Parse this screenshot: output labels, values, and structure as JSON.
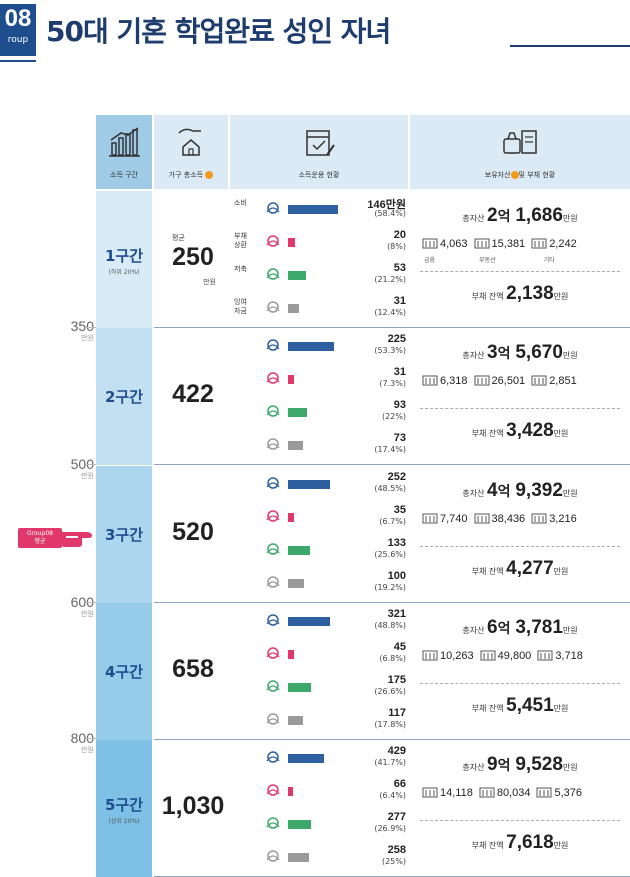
{
  "header": {
    "badge_number": "08",
    "badge_label": "roup",
    "title": "50대 기혼 학업완료 성인 자녀"
  },
  "scale": [
    {
      "value": "350",
      "unit": "만원"
    },
    {
      "value": "500",
      "unit": "만원"
    },
    {
      "value": "600",
      "unit": "만원"
    },
    {
      "value": "800",
      "unit": "만원"
    }
  ],
  "pointer": {
    "tag_line1": "Group08",
    "tag_line2": "평균"
  },
  "columns": {
    "group": "소득 구간",
    "income": "가구 총소득",
    "usage": "소득운용 현황",
    "assets_a": "보유자산",
    "assets_b": "및 부채 현황"
  },
  "colors": {
    "consumption": "#2e5f9e",
    "debt_repay": "#e0386a",
    "savings": "#3da86a",
    "surplus": "#9a9a9a",
    "header_bg": "#dbeaf4",
    "col_dark": "#9fcbe6",
    "col_light": "#d8ebf6"
  },
  "usage_labels": {
    "consumption": "소비",
    "debt": "부채\n상환",
    "savings": "저축",
    "surplus": "잉여\n자금"
  },
  "row1_extra": {
    "avg": "평균",
    "unit": "만원",
    "consumption_unit": "만원",
    "sub": "(하위 20%)"
  },
  "row5_extra": {
    "sub": "(상위 20%)"
  },
  "asset_labels": {
    "total": "총자산",
    "eok": "억",
    "man": "만원",
    "debt": "부채 잔액",
    "fin": "금융",
    "real": "부동산",
    "etc": "기타"
  },
  "rows": [
    {
      "group": "1구간",
      "income": "250",
      "usage": [
        {
          "value": "146",
          "pct": "(58.4%)",
          "ratio": 0.584
        },
        {
          "value": "20",
          "pct": "(8%)",
          "ratio": 0.08
        },
        {
          "value": "53",
          "pct": "(21.2%)",
          "ratio": 0.212
        },
        {
          "value": "31",
          "pct": "(12.4%)",
          "ratio": 0.124
        }
      ],
      "total_eok": "2",
      "total_man": "1,686",
      "financial": "4,063",
      "real_estate": "15,381",
      "other": "2,242",
      "debt": "2,138"
    },
    {
      "group": "2구간",
      "income": "422",
      "usage": [
        {
          "value": "225",
          "pct": "(53.3%)",
          "ratio": 0.533
        },
        {
          "value": "31",
          "pct": "(7.3%)",
          "ratio": 0.073
        },
        {
          "value": "93",
          "pct": "(22%)",
          "ratio": 0.22
        },
        {
          "value": "73",
          "pct": "(17.4%)",
          "ratio": 0.174
        }
      ],
      "total_eok": "3",
      "total_man": "5,670",
      "financial": "6,318",
      "real_estate": "26,501",
      "other": "2,851",
      "debt": "3,428"
    },
    {
      "group": "3구간",
      "income": "520",
      "usage": [
        {
          "value": "252",
          "pct": "(48.5%)",
          "ratio": 0.485
        },
        {
          "value": "35",
          "pct": "(6.7%)",
          "ratio": 0.067
        },
        {
          "value": "133",
          "pct": "(25.6%)",
          "ratio": 0.256
        },
        {
          "value": "100",
          "pct": "(19.2%)",
          "ratio": 0.192
        }
      ],
      "total_eok": "4",
      "total_man": "9,392",
      "financial": "7,740",
      "real_estate": "38,436",
      "other": "3,216",
      "debt": "4,277"
    },
    {
      "group": "4구간",
      "income": "658",
      "usage": [
        {
          "value": "321",
          "pct": "(48.8%)",
          "ratio": 0.488
        },
        {
          "value": "45",
          "pct": "(6.8%)",
          "ratio": 0.068
        },
        {
          "value": "175",
          "pct": "(26.6%)",
          "ratio": 0.266
        },
        {
          "value": "117",
          "pct": "(17.8%)",
          "ratio": 0.178
        }
      ],
      "total_eok": "6",
      "total_man": "3,781",
      "financial": "10,263",
      "real_estate": "49,800",
      "other": "3,718",
      "debt": "5,451"
    },
    {
      "group": "5구간",
      "income": "1,030",
      "usage": [
        {
          "value": "429",
          "pct": "(41.7%)",
          "ratio": 0.417
        },
        {
          "value": "66",
          "pct": "(6.4%)",
          "ratio": 0.064
        },
        {
          "value": "277",
          "pct": "(26.9%)",
          "ratio": 0.269
        },
        {
          "value": "258",
          "pct": "(25%)",
          "ratio": 0.25
        }
      ],
      "total_eok": "9",
      "total_man": "9,528",
      "financial": "14,118",
      "real_estate": "80,034",
      "other": "5,376",
      "debt": "7,618"
    }
  ]
}
